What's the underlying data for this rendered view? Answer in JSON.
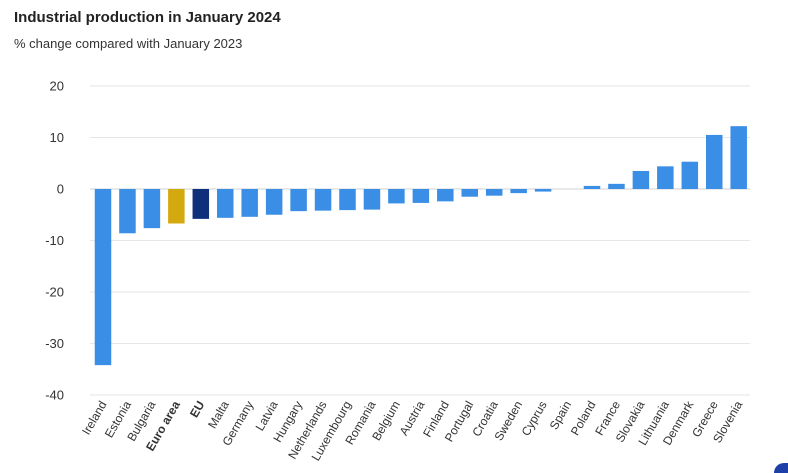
{
  "header": {
    "title": "Industrial production in January 2024",
    "subtitle": "% change compared with January 2023"
  },
  "colors": {
    "country": "#3a8ee6",
    "euro_area": "#d4a90f",
    "eu": "#0e2f7a",
    "grid": "#e6e6e6"
  },
  "chart_data": {
    "type": "bar",
    "title": "Industrial production in January 2024",
    "subtitle": "% change compared with January 2023",
    "xlabel": "",
    "ylabel": "",
    "ylim": [
      -40,
      20
    ],
    "yticks": [
      20,
      10,
      0,
      -10,
      -20,
      -30,
      -40
    ],
    "grid": true,
    "categories": [
      "Ireland",
      "Estonia",
      "Bulgaria",
      "Euro area",
      "EU",
      "Malta",
      "Germany",
      "Latvia",
      "Hungary",
      "Netherlands",
      "Luxembourg",
      "Romania",
      "Belgium",
      "Austria",
      "Finland",
      "Portugal",
      "Croatia",
      "Sweden",
      "Cyprus",
      "Spain",
      "Poland",
      "France",
      "Slovakia",
      "Lithuania",
      "Denmark",
      "Greece",
      "Slovenia"
    ],
    "values": [
      -34.2,
      -8.6,
      -7.6,
      -6.7,
      -5.8,
      -5.6,
      -5.4,
      -5.0,
      -4.3,
      -4.2,
      -4.1,
      -4.0,
      -2.8,
      -2.7,
      -2.4,
      -1.5,
      -1.3,
      -0.8,
      -0.5,
      0.0,
      0.6,
      1.0,
      3.5,
      4.4,
      5.3,
      10.5,
      12.2
    ],
    "bold_categories": [
      "Euro area",
      "EU"
    ]
  }
}
